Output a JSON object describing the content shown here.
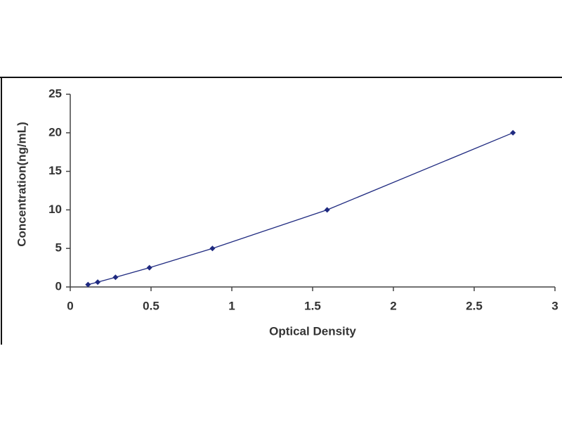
{
  "chart_data": {
    "type": "line",
    "xlabel": "Optical Density",
    "ylabel": "Concentration(ng/mL)",
    "x": [
      0.11,
      0.17,
      0.28,
      0.49,
      0.88,
      1.59,
      2.74
    ],
    "values": [
      0.31,
      0.63,
      1.25,
      2.5,
      5,
      10,
      20
    ],
    "color": "#1f2a80",
    "markers": true,
    "xlim": [
      0,
      3
    ],
    "xticks": [
      0,
      0.5,
      1,
      1.5,
      2,
      2.5,
      3
    ],
    "ylim": [
      0,
      25
    ],
    "yticks": [
      0,
      5,
      10,
      15,
      20,
      25
    ],
    "grid": false
  }
}
